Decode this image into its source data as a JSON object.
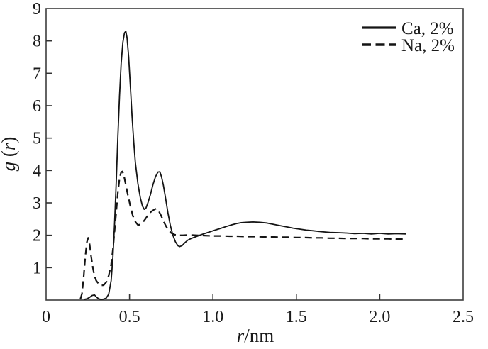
{
  "figure": {
    "background": "#ffffff",
    "frame_color": "#3d3d3d",
    "line_color": "#141414"
  },
  "chart_data": {
    "type": "line",
    "title": "",
    "xlabel": "r/nm",
    "ylabel": "g (r)",
    "xlabel_parts": [
      {
        "text": "r",
        "italic": true
      },
      {
        "text": "/nm",
        "italic": false
      }
    ],
    "ylabel_parts": [
      {
        "text": "g",
        "italic": true
      },
      {
        "text": " (",
        "italic": false
      },
      {
        "text": "r",
        "italic": true
      },
      {
        "text": ")",
        "italic": false
      }
    ],
    "xlim": [
      0,
      2.5
    ],
    "ylim": [
      0,
      9
    ],
    "grid": false,
    "x_ticks": [
      {
        "value": 0,
        "label": "0"
      },
      {
        "value": 0.5,
        "label": "0.5"
      },
      {
        "value": 1.0,
        "label": "1.0"
      },
      {
        "value": 1.5,
        "label": "1.5"
      },
      {
        "value": 2.0,
        "label": "2.0"
      },
      {
        "value": 2.5,
        "label": "2.5"
      }
    ],
    "y_ticks": [
      {
        "value": 1,
        "label": "1"
      },
      {
        "value": 2,
        "label": "2"
      },
      {
        "value": 3,
        "label": "3"
      },
      {
        "value": 4,
        "label": "4"
      },
      {
        "value": 5,
        "label": "5"
      },
      {
        "value": 6,
        "label": "6"
      },
      {
        "value": 7,
        "label": "7"
      },
      {
        "value": 8,
        "label": "8"
      },
      {
        "value": 9,
        "label": "9"
      }
    ],
    "legend": {
      "position": "top-right"
    },
    "series": [
      {
        "name": "Ca, 2%",
        "style": "solid",
        "color": "#141414",
        "points": [
          [
            0.225,
            0.02
          ],
          [
            0.245,
            0.04
          ],
          [
            0.26,
            0.08
          ],
          [
            0.275,
            0.14
          ],
          [
            0.29,
            0.16
          ],
          [
            0.3,
            0.1
          ],
          [
            0.315,
            0.04
          ],
          [
            0.33,
            0.02
          ],
          [
            0.345,
            0.03
          ],
          [
            0.36,
            0.06
          ],
          [
            0.375,
            0.18
          ],
          [
            0.39,
            0.6
          ],
          [
            0.4,
            1.3
          ],
          [
            0.41,
            2.3
          ],
          [
            0.42,
            3.6
          ],
          [
            0.43,
            5.0
          ],
          [
            0.44,
            6.3
          ],
          [
            0.45,
            7.3
          ],
          [
            0.46,
            7.95
          ],
          [
            0.47,
            8.25
          ],
          [
            0.478,
            8.3
          ],
          [
            0.485,
            8.1
          ],
          [
            0.495,
            7.5
          ],
          [
            0.505,
            6.6
          ],
          [
            0.515,
            5.7
          ],
          [
            0.525,
            4.9
          ],
          [
            0.535,
            4.25
          ],
          [
            0.55,
            3.6
          ],
          [
            0.565,
            3.15
          ],
          [
            0.578,
            2.9
          ],
          [
            0.588,
            2.8
          ],
          [
            0.598,
            2.83
          ],
          [
            0.61,
            3.0
          ],
          [
            0.625,
            3.25
          ],
          [
            0.64,
            3.55
          ],
          [
            0.655,
            3.8
          ],
          [
            0.67,
            3.95
          ],
          [
            0.682,
            3.96
          ],
          [
            0.692,
            3.8
          ],
          [
            0.703,
            3.55
          ],
          [
            0.716,
            3.15
          ],
          [
            0.73,
            2.7
          ],
          [
            0.745,
            2.3
          ],
          [
            0.76,
            2.0
          ],
          [
            0.775,
            1.8
          ],
          [
            0.79,
            1.68
          ],
          [
            0.8,
            1.65
          ],
          [
            0.815,
            1.68
          ],
          [
            0.83,
            1.76
          ],
          [
            0.85,
            1.85
          ],
          [
            0.87,
            1.9
          ],
          [
            0.89,
            1.94
          ],
          [
            0.91,
            1.98
          ],
          [
            0.93,
            2.02
          ],
          [
            0.96,
            2.07
          ],
          [
            0.99,
            2.12
          ],
          [
            1.02,
            2.17
          ],
          [
            1.05,
            2.22
          ],
          [
            1.08,
            2.27
          ],
          [
            1.11,
            2.32
          ],
          [
            1.14,
            2.36
          ],
          [
            1.17,
            2.39
          ],
          [
            1.2,
            2.4
          ],
          [
            1.24,
            2.41
          ],
          [
            1.28,
            2.4
          ],
          [
            1.32,
            2.38
          ],
          [
            1.36,
            2.34
          ],
          [
            1.4,
            2.3
          ],
          [
            1.44,
            2.26
          ],
          [
            1.48,
            2.22
          ],
          [
            1.52,
            2.19
          ],
          [
            1.56,
            2.16
          ],
          [
            1.6,
            2.14
          ],
          [
            1.65,
            2.11
          ],
          [
            1.7,
            2.09
          ],
          [
            1.75,
            2.08
          ],
          [
            1.8,
            2.07
          ],
          [
            1.85,
            2.05
          ],
          [
            1.9,
            2.06
          ],
          [
            1.95,
            2.04
          ],
          [
            2.0,
            2.06
          ],
          [
            2.05,
            2.04
          ],
          [
            2.1,
            2.05
          ],
          [
            2.16,
            2.04
          ]
        ]
      },
      {
        "name": "Na, 2%",
        "style": "dashed",
        "color": "#141414",
        "points": [
          [
            0.205,
            0.02
          ],
          [
            0.215,
            0.2
          ],
          [
            0.225,
            0.7
          ],
          [
            0.235,
            1.35
          ],
          [
            0.245,
            1.8
          ],
          [
            0.252,
            1.92
          ],
          [
            0.26,
            1.75
          ],
          [
            0.27,
            1.35
          ],
          [
            0.28,
            1.0
          ],
          [
            0.29,
            0.75
          ],
          [
            0.3,
            0.6
          ],
          [
            0.315,
            0.5
          ],
          [
            0.33,
            0.45
          ],
          [
            0.345,
            0.46
          ],
          [
            0.36,
            0.55
          ],
          [
            0.375,
            0.75
          ],
          [
            0.39,
            1.1
          ],
          [
            0.4,
            1.55
          ],
          [
            0.41,
            2.1
          ],
          [
            0.42,
            2.7
          ],
          [
            0.43,
            3.3
          ],
          [
            0.44,
            3.75
          ],
          [
            0.45,
            3.95
          ],
          [
            0.458,
            3.97
          ],
          [
            0.466,
            3.85
          ],
          [
            0.476,
            3.6
          ],
          [
            0.49,
            3.25
          ],
          [
            0.505,
            2.9
          ],
          [
            0.52,
            2.6
          ],
          [
            0.535,
            2.42
          ],
          [
            0.55,
            2.32
          ],
          [
            0.565,
            2.33
          ],
          [
            0.58,
            2.4
          ],
          [
            0.595,
            2.5
          ],
          [
            0.61,
            2.62
          ],
          [
            0.63,
            2.73
          ],
          [
            0.65,
            2.8
          ],
          [
            0.66,
            2.82
          ],
          [
            0.675,
            2.75
          ],
          [
            0.69,
            2.6
          ],
          [
            0.705,
            2.42
          ],
          [
            0.72,
            2.27
          ],
          [
            0.735,
            2.15
          ],
          [
            0.75,
            2.07
          ],
          [
            0.77,
            2.02
          ],
          [
            0.79,
            2.0
          ],
          [
            0.82,
            2.0
          ],
          [
            0.86,
            2.01
          ],
          [
            0.9,
            2.0
          ],
          [
            0.95,
            1.99
          ],
          [
            1.0,
            1.98
          ],
          [
            1.05,
            1.98
          ],
          [
            1.1,
            1.97
          ],
          [
            1.15,
            1.97
          ],
          [
            1.2,
            1.96
          ],
          [
            1.25,
            1.96
          ],
          [
            1.3,
            1.95
          ],
          [
            1.35,
            1.95
          ],
          [
            1.4,
            1.94
          ],
          [
            1.45,
            1.94
          ],
          [
            1.5,
            1.93
          ],
          [
            1.55,
            1.93
          ],
          [
            1.6,
            1.92
          ],
          [
            1.65,
            1.92
          ],
          [
            1.7,
            1.91
          ],
          [
            1.75,
            1.91
          ],
          [
            1.8,
            1.9
          ],
          [
            1.85,
            1.9
          ],
          [
            1.9,
            1.9
          ],
          [
            1.95,
            1.89
          ],
          [
            2.0,
            1.89
          ],
          [
            2.05,
            1.89
          ],
          [
            2.1,
            1.88
          ],
          [
            2.15,
            1.88
          ]
        ]
      }
    ]
  }
}
